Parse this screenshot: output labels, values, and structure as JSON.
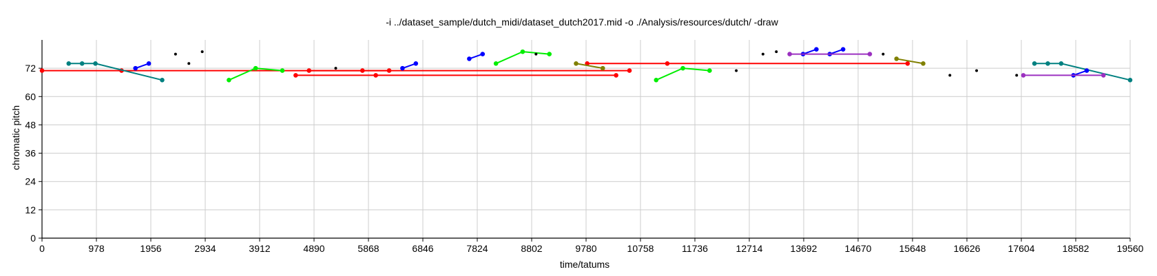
{
  "chart_data": {
    "type": "scatter",
    "title": "-i ../dataset_sample/dutch_midi/dataset_dutch2017.mid -o ./Analysis/resources/dutch/ -draw",
    "xlabel": "time/tatums",
    "ylabel": "chromatic pitch",
    "xlim": [
      0,
      19560
    ],
    "ylim": [
      0,
      84
    ],
    "xticks": [
      0,
      978,
      1956,
      2934,
      3912,
      4890,
      5868,
      6846,
      7824,
      8802,
      9780,
      10758,
      11736,
      12714,
      13692,
      14670,
      15648,
      16626,
      17604,
      18582,
      19560
    ],
    "yticks": [
      0,
      12,
      24,
      36,
      48,
      60,
      72
    ],
    "grid": true,
    "series": [
      {
        "color": "#ff0000",
        "segments": [
          [
            [
              0,
              71
            ],
            [
              1430,
              71
            ],
            [
              10560,
              71
            ]
          ],
          [
            [
              4560,
              69
            ],
            [
              6000,
              69
            ],
            [
              10320,
              69
            ]
          ],
          [
            [
              4800,
              71
            ],
            [
              5760,
              71
            ],
            [
              6240,
              71
            ]
          ],
          [
            [
              9800,
              74
            ],
            [
              11240,
              74
            ],
            [
              15560,
              74
            ]
          ]
        ]
      },
      {
        "color": "#008080",
        "segments": [
          [
            [
              480,
              74
            ],
            [
              720,
              74
            ],
            [
              960,
              74
            ],
            [
              2160,
              67
            ]
          ],
          [
            [
              17840,
              74
            ],
            [
              18080,
              74
            ],
            [
              18320,
              74
            ],
            [
              19560,
              67
            ]
          ]
        ]
      },
      {
        "color": "#0000ff",
        "segments": [
          [
            [
              1680,
              72
            ],
            [
              1920,
              74
            ]
          ],
          [
            [
              6480,
              72
            ],
            [
              6720,
              74
            ]
          ],
          [
            [
              7680,
              76
            ],
            [
              7920,
              78
            ]
          ],
          [
            [
              13680,
              78
            ],
            [
              13920,
              80
            ]
          ],
          [
            [
              14160,
              78
            ],
            [
              14400,
              80
            ]
          ],
          [
            [
              18540,
              69
            ],
            [
              18780,
              71
            ]
          ]
        ]
      },
      {
        "color": "#00ee00",
        "segments": [
          [
            [
              3360,
              67
            ],
            [
              3840,
              72
            ],
            [
              4320,
              71
            ]
          ],
          [
            [
              8160,
              74
            ],
            [
              8640,
              79
            ],
            [
              9120,
              78
            ]
          ],
          [
            [
              11040,
              67
            ],
            [
              11520,
              72
            ],
            [
              12000,
              71
            ]
          ]
        ]
      },
      {
        "color": "#808000",
        "segments": [
          [
            [
              9600,
              74
            ],
            [
              10080,
              72
            ]
          ],
          [
            [
              15360,
              76
            ],
            [
              15840,
              74
            ]
          ]
        ]
      },
      {
        "color": "#9b30c0",
        "segments": [
          [
            [
              13440,
              78
            ],
            [
              14880,
              78
            ]
          ],
          [
            [
              17640,
              69
            ],
            [
              19080,
              69
            ]
          ]
        ]
      },
      {
        "color": "#000000",
        "segments": [
          [
            [
              2400,
              78
            ]
          ],
          [
            [
              2640,
              74
            ]
          ],
          [
            [
              2880,
              79
            ]
          ],
          [
            [
              5280,
              72
            ]
          ],
          [
            [
              8880,
              78
            ]
          ],
          [
            [
              12480,
              71
            ]
          ],
          [
            [
              12960,
              78
            ]
          ],
          [
            [
              13200,
              79
            ]
          ],
          [
            [
              15120,
              78
            ]
          ],
          [
            [
              16320,
              69
            ]
          ],
          [
            [
              16800,
              71
            ]
          ],
          [
            [
              17520,
              69
            ]
          ]
        ]
      }
    ]
  }
}
